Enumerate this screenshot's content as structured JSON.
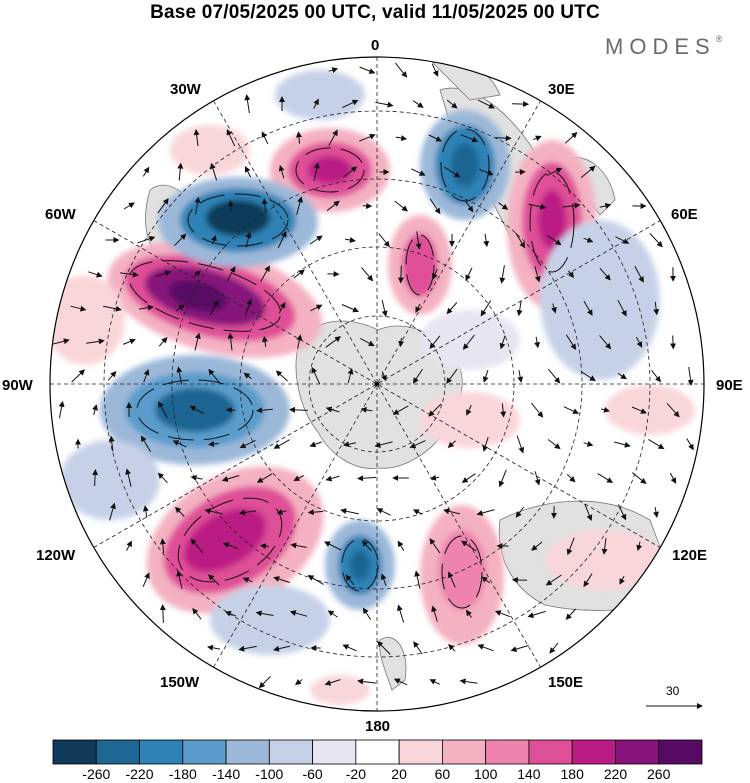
{
  "title": "Base 07/05/2025 00 UTC, valid 11/05/2025 00 UTC",
  "logo": {
    "text": "MODES",
    "mark": "®"
  },
  "longitude_labels": {
    "lon_0": "0",
    "lon_30e": "30E",
    "lon_60e": "60E",
    "lon_90e": "90E",
    "lon_120e": "120E",
    "lon_150e": "150E",
    "lon_180": "180",
    "lon_150w": "150W",
    "lon_120w": "120W",
    "lon_90w": "90W",
    "lon_60w": "60W",
    "lon_30w": "30W"
  },
  "colorbar": {
    "ticks": [
      "-260",
      "-220",
      "-180",
      "-140",
      "-100",
      "-60",
      "-20",
      "20",
      "60",
      "100",
      "140",
      "180",
      "220",
      "260"
    ],
    "colors": [
      "#113a5a",
      "#1d6593",
      "#2f82b6",
      "#5a9ccb",
      "#9bb8d9",
      "#c6d1e8",
      "#e6e5f1",
      "#ffffff",
      "#f9d6d9",
      "#f4b1c2",
      "#ee83ad",
      "#df4f97",
      "#bb1c84",
      "#86127a",
      "#560a63"
    ]
  },
  "reference_vector": {
    "label": "30"
  },
  "colors": {
    "land": "#e1e1e1",
    "coast": "#777777"
  }
}
